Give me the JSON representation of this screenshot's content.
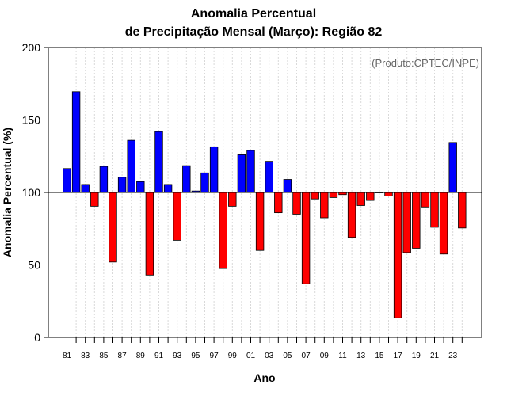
{
  "chart_data": {
    "type": "bar",
    "title_line1": "Anomalia Percentual",
    "title_line2": "de Precipitação Mensal (Março): Região 82",
    "xlabel": "Ano",
    "ylabel": "Anomalia Percentual (%)",
    "credit": "(Produto:CPTEC/INPE)",
    "baseline": 100,
    "ylim": [
      0,
      200
    ],
    "yticks": [
      0,
      50,
      100,
      150,
      200
    ],
    "grid": true,
    "colors": {
      "above": "#0000ff",
      "below": "#ff0000",
      "edge": "#000000",
      "grid": "#d9d9d9"
    },
    "categories": [
      "81",
      "82",
      "83",
      "84",
      "85",
      "86",
      "87",
      "88",
      "89",
      "90",
      "91",
      "92",
      "93",
      "94",
      "95",
      "96",
      "97",
      "98",
      "99",
      "00",
      "01",
      "02",
      "03",
      "04",
      "05",
      "06",
      "07",
      "08",
      "09",
      "10",
      "11",
      "12",
      "13",
      "14",
      "15",
      "16",
      "17",
      "18",
      "19",
      "20",
      "21",
      "22",
      "23",
      "24"
    ],
    "x_tick_labels": [
      "81",
      "83",
      "85",
      "87",
      "89",
      "91",
      "93",
      "95",
      "97",
      "99",
      "01",
      "03",
      "05",
      "07",
      "09",
      "11",
      "13",
      "15",
      "17",
      "19",
      "21",
      "23"
    ],
    "values": [
      116.5,
      169.5,
      105.5,
      90.5,
      118,
      52,
      110.5,
      136,
      107.5,
      43,
      142,
      105.5,
      67,
      118.5,
      101,
      113.5,
      131.5,
      47.5,
      90.5,
      126,
      129,
      60,
      121.5,
      86,
      109,
      85,
      37,
      95.5,
      82.5,
      96.5,
      98.5,
      69,
      91,
      94.5,
      100,
      97.5,
      13.5,
      58.5,
      61.5,
      90,
      76,
      57.5,
      134.5,
      75.5
    ]
  }
}
